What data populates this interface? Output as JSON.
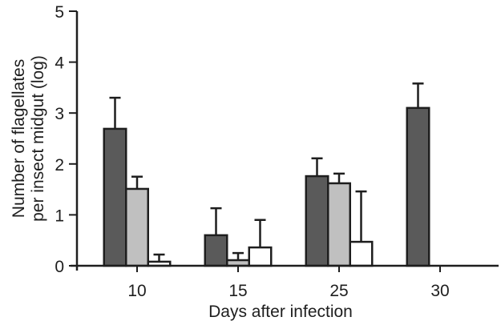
{
  "chart_data": {
    "type": "bar",
    "title": "",
    "xlabel": "Days after infection",
    "ylabel_lines": [
      "Number of flagellates",
      "per insect midgut (log)"
    ],
    "ylabel": "Number of flagellates per insect midgut (log)",
    "ylim": [
      0,
      5
    ],
    "yticks": [
      0,
      1,
      2,
      3,
      4,
      5
    ],
    "categories": [
      "10",
      "15",
      "25",
      "30"
    ],
    "grid": false,
    "legend": null,
    "series": [
      {
        "name": "series-dark",
        "fill": "#5a5a5a",
        "values": [
          2.69,
          0.6,
          1.76,
          3.1
        ],
        "error_upper": [
          3.3,
          1.13,
          2.11,
          3.58
        ]
      },
      {
        "name": "series-light",
        "fill": "#c0c0c0",
        "values": [
          1.51,
          0.11,
          1.62,
          null
        ],
        "error_upper": [
          1.75,
          0.25,
          1.81,
          null
        ]
      },
      {
        "name": "series-white",
        "fill": "#ffffff",
        "values": [
          0.08,
          0.36,
          0.47,
          null
        ],
        "error_upper": [
          0.22,
          0.9,
          1.46,
          null
        ]
      }
    ]
  },
  "colors": {
    "axis": "#1e1e1e",
    "outline": "#1e1e1e"
  }
}
